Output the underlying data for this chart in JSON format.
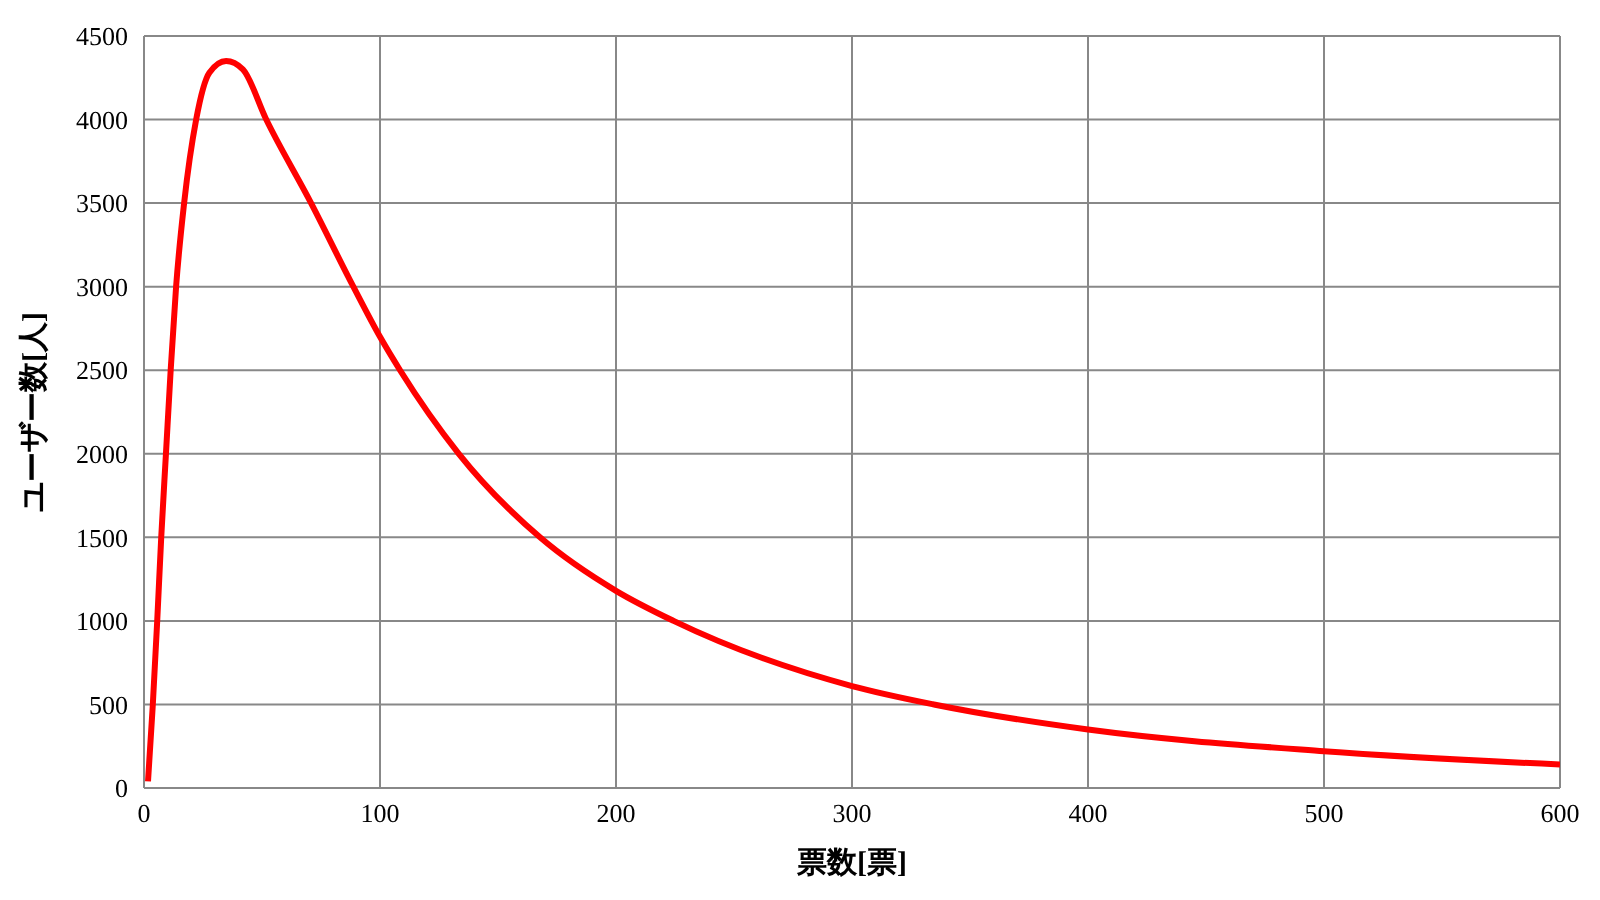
{
  "chart_data": {
    "type": "line",
    "xlabel": "票数[票]",
    "ylabel": "ユーザー数[人]",
    "x": [
      1.7,
      3.7,
      5.6,
      7.3,
      9.3,
      11.3,
      13.6,
      17.0,
      22.1,
      27.7,
      34.8,
      41.9,
      51.8,
      70.8,
      88.7,
      100,
      108.5,
      133.4,
      167.8,
      200,
      224.4,
      300,
      334.7,
      400,
      500,
      600
    ],
    "series": [
      {
        "color": "#ff0000",
        "values": [
          40,
          490,
          1000,
          1500,
          2000,
          2500,
          3000,
          3500,
          4000,
          4280,
          4350,
          4300,
          4000,
          3500,
          3000,
          2700,
          2500,
          2000,
          1500,
          1180,
          1000,
          610,
          500,
          350,
          220,
          140
        ]
      }
    ],
    "xlim": [
      0,
      600
    ],
    "xticks": [
      0,
      100,
      200,
      300,
      400,
      500,
      600
    ],
    "ylim": [
      0,
      4500
    ],
    "yticks": [
      0,
      500,
      1000,
      1500,
      2000,
      2500,
      3000,
      3500,
      4000,
      4500
    ],
    "grid": true,
    "legend": false,
    "marker": "none",
    "line_style": "solid"
  }
}
